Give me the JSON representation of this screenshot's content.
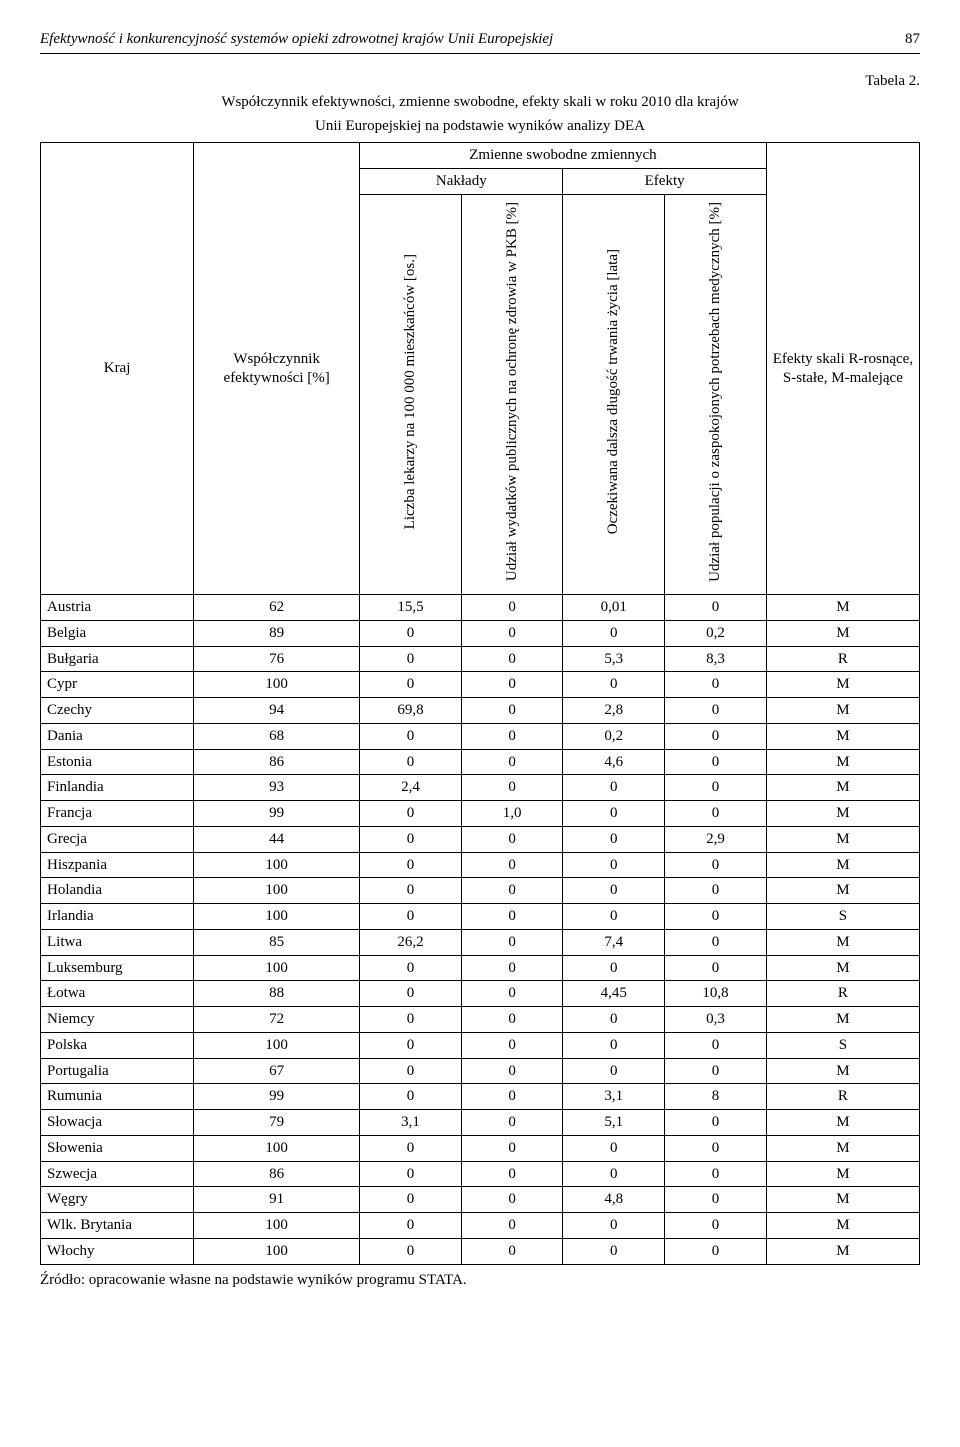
{
  "running_head": {
    "title": "Efektywność i konkurencyjność systemów opieki zdrowotnej krajów Unii Europejskiej",
    "page": "87"
  },
  "table_label": "Tabela 2.",
  "title_line1": "Współczynnik efektywności, zmienne swobodne, efekty skali w roku 2010 dla krajów",
  "title_line2": "Unii Europejskiej na podstawie wyników analizy DEA",
  "headers": {
    "kraj": "Kraj",
    "wspolczynnik": "Współczynnik efektywności [%]",
    "zmienne": "Zmienne swobodne zmiennych",
    "naklady": "Nakłady",
    "efekty": "Efekty",
    "col1": "Liczba lekarzy na 100 000 mieszkańców [os.]",
    "col2": "Udział wydatków publicznych na ochronę zdrowia w PKB [%]",
    "col3": "Oczekiwana dalsza długość trwania życia [lata]",
    "col4": "Udział populacji o zaspokojonych potrzebach medycznych [%]",
    "skali": "Efekty skali R-rosnące, S-stałe, M-malejące"
  },
  "rows": [
    {
      "c": "Austria",
      "w": "62",
      "v": [
        "15,5",
        "0",
        "0,01",
        "0"
      ],
      "s": "M"
    },
    {
      "c": "Belgia",
      "w": "89",
      "v": [
        "0",
        "0",
        "0",
        "0,2"
      ],
      "s": "M"
    },
    {
      "c": "Bułgaria",
      "w": "76",
      "v": [
        "0",
        "0",
        "5,3",
        "8,3"
      ],
      "s": "R"
    },
    {
      "c": "Cypr",
      "w": "100",
      "v": [
        "0",
        "0",
        "0",
        "0"
      ],
      "s": "M"
    },
    {
      "c": "Czechy",
      "w": "94",
      "v": [
        "69,8",
        "0",
        "2,8",
        "0"
      ],
      "s": "M"
    },
    {
      "c": "Dania",
      "w": "68",
      "v": [
        "0",
        "0",
        "0,2",
        "0"
      ],
      "s": "M"
    },
    {
      "c": "Estonia",
      "w": "86",
      "v": [
        "0",
        "0",
        "4,6",
        "0"
      ],
      "s": "M"
    },
    {
      "c": "Finlandia",
      "w": "93",
      "v": [
        "2,4",
        "0",
        "0",
        "0"
      ],
      "s": "M"
    },
    {
      "c": "Francja",
      "w": "99",
      "v": [
        "0",
        "1,0",
        "0",
        "0"
      ],
      "s": "M"
    },
    {
      "c": "Grecja",
      "w": "44",
      "v": [
        "0",
        "0",
        "0",
        "2,9"
      ],
      "s": "M"
    },
    {
      "c": "Hiszpania",
      "w": "100",
      "v": [
        "0",
        "0",
        "0",
        "0"
      ],
      "s": "M"
    },
    {
      "c": "Holandia",
      "w": "100",
      "v": [
        "0",
        "0",
        "0",
        "0"
      ],
      "s": "M"
    },
    {
      "c": "Irlandia",
      "w": "100",
      "v": [
        "0",
        "0",
        "0",
        "0"
      ],
      "s": "S"
    },
    {
      "c": "Litwa",
      "w": "85",
      "v": [
        "26,2",
        "0",
        "7,4",
        "0"
      ],
      "s": "M"
    },
    {
      "c": "Luksemburg",
      "w": "100",
      "v": [
        "0",
        "0",
        "0",
        "0"
      ],
      "s": "M"
    },
    {
      "c": "Łotwa",
      "w": "88",
      "v": [
        "0",
        "0",
        "4,45",
        "10,8"
      ],
      "s": "R"
    },
    {
      "c": "Niemcy",
      "w": "72",
      "v": [
        "0",
        "0",
        "0",
        "0,3"
      ],
      "s": "M"
    },
    {
      "c": "Polska",
      "w": "100",
      "v": [
        "0",
        "0",
        "0",
        "0"
      ],
      "s": "S"
    },
    {
      "c": "Portugalia",
      "w": "67",
      "v": [
        "0",
        "0",
        "0",
        "0"
      ],
      "s": "M"
    },
    {
      "c": "Rumunia",
      "w": "99",
      "v": [
        "0",
        "0",
        "3,1",
        "8"
      ],
      "s": "R"
    },
    {
      "c": "Słowacja",
      "w": "79",
      "v": [
        "3,1",
        "0",
        "5,1",
        "0"
      ],
      "s": "M"
    },
    {
      "c": "Słowenia",
      "w": "100",
      "v": [
        "0",
        "0",
        "0",
        "0"
      ],
      "s": "M"
    },
    {
      "c": "Szwecja",
      "w": "86",
      "v": [
        "0",
        "0",
        "0",
        "0"
      ],
      "s": "M"
    },
    {
      "c": "Węgry",
      "w": "91",
      "v": [
        "0",
        "0",
        "4,8",
        "0"
      ],
      "s": "M"
    },
    {
      "c": "Wlk. Brytania",
      "w": "100",
      "v": [
        "0",
        "0",
        "0",
        "0"
      ],
      "s": "M"
    },
    {
      "c": "Włochy",
      "w": "100",
      "v": [
        "0",
        "0",
        "0",
        "0"
      ],
      "s": "M"
    }
  ],
  "source": "Źródło: opracowanie własne na podstawie wyników programu STATA."
}
